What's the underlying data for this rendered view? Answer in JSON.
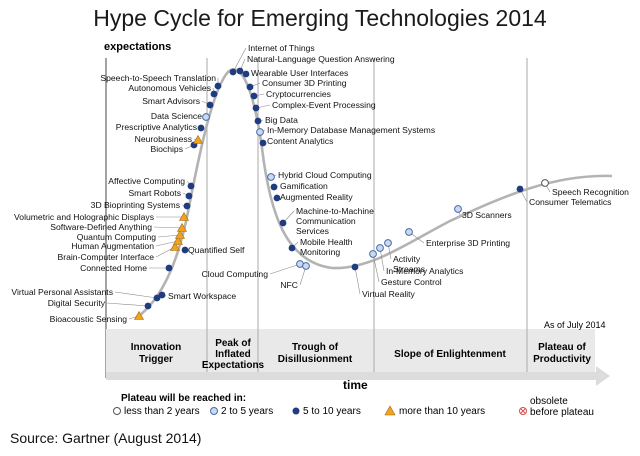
{
  "title": "Hype Cycle for Emerging Technologies 2014",
  "source": "Source: Gartner (August 2014)",
  "axes": {
    "y_label": "expectations",
    "x_label": "time"
  },
  "as_of": "As of July 2014",
  "phases": [
    {
      "lines": [
        "Innovation",
        "Trigger"
      ]
    },
    {
      "lines": [
        "Peak of",
        "Inflated",
        "Expectations"
      ]
    },
    {
      "lines": [
        "Trough of",
        "Disillusionment"
      ]
    },
    {
      "lines": [
        "Slope of Enlightenment"
      ]
    },
    {
      "lines": [
        "Plateau of",
        "Productivity"
      ]
    }
  ],
  "legend": {
    "title": "Plateau will be reached in:",
    "items": [
      {
        "marker": "open-circle",
        "label": "less than 2 years"
      },
      {
        "marker": "light-circle",
        "label": "2 to 5 years"
      },
      {
        "marker": "dark-circle",
        "label": "5 to 10 years"
      },
      {
        "marker": "triangle",
        "label": "more than 10 years"
      },
      {
        "marker": "crossed-circle",
        "label": "obsolete before plateau",
        "lines": [
          "obsolete",
          "before plateau"
        ]
      }
    ]
  },
  "colors": {
    "curve": "#b0b0b0",
    "dark_marker": "#1f3c80",
    "light_marker": "#c8daf0",
    "triangle": "#f2a21b",
    "obsolete": "#d8504e"
  },
  "technologies": [
    {
      "name": "Bioacoustic Sensing",
      "category": "triangle"
    },
    {
      "name": "Digital Security",
      "category": "dark"
    },
    {
      "name": "Virtual Personal Assistants",
      "category": "dark"
    },
    {
      "name": "Smart Workspace",
      "category": "dark"
    },
    {
      "name": "Connected Home",
      "category": "dark"
    },
    {
      "name": "Quantified Self",
      "category": "dark"
    },
    {
      "name": "Brain-Computer Interface",
      "category": "triangle"
    },
    {
      "name": "Human Augmentation",
      "category": "triangle"
    },
    {
      "name": "Quantum Computing",
      "category": "triangle"
    },
    {
      "name": "Software-Defined Anything",
      "category": "triangle"
    },
    {
      "name": "Volumetric and Holographic Displays",
      "category": "triangle"
    },
    {
      "name": "3D Bioprinting Systems",
      "category": "dark"
    },
    {
      "name": "Smart Robots",
      "category": "dark"
    },
    {
      "name": "Affective Computing",
      "category": "dark"
    },
    {
      "name": "Biochips",
      "category": "dark"
    },
    {
      "name": "Neurobusiness",
      "category": "triangle"
    },
    {
      "name": "Prescriptive Analytics",
      "category": "dark"
    },
    {
      "name": "Data Science",
      "category": "light"
    },
    {
      "name": "Smart Advisors",
      "category": "dark"
    },
    {
      "name": "Autonomous Vehicles",
      "category": "dark"
    },
    {
      "name": "Speech-to-Speech Translation",
      "category": "dark"
    },
    {
      "name": "Internet of Things",
      "category": "dark"
    },
    {
      "name": "Natural-Language Question Answering",
      "category": "dark"
    },
    {
      "name": "Wearable User Interfaces",
      "category": "dark"
    },
    {
      "name": "Consumer 3D Printing",
      "category": "dark"
    },
    {
      "name": "Cryptocurrencies",
      "category": "dark"
    },
    {
      "name": "Complex-Event Processing",
      "category": "dark"
    },
    {
      "name": "Big Data",
      "category": "dark"
    },
    {
      "name": "In-Memory Database Management Systems",
      "category": "light"
    },
    {
      "name": "Content Analytics",
      "category": "dark"
    },
    {
      "name": "Hybrid Cloud Computing",
      "category": "light"
    },
    {
      "name": "Gamification",
      "category": "dark"
    },
    {
      "name": "Augmented Reality",
      "category": "dark"
    },
    {
      "name": "Machine-to-Machine Communication Services",
      "category": "dark",
      "lines": [
        "Machine-to-Machine",
        "Communication",
        "Services"
      ]
    },
    {
      "name": "Mobile Health Monitoring",
      "category": "dark",
      "lines": [
        "Mobile Health",
        "Monitoring"
      ]
    },
    {
      "name": "Cloud Computing",
      "category": "light"
    },
    {
      "name": "NFC",
      "category": "light"
    },
    {
      "name": "Virtual Reality",
      "category": "dark"
    },
    {
      "name": "Gesture Control",
      "category": "light"
    },
    {
      "name": "In-Memory Analytics",
      "category": "light"
    },
    {
      "name": "Activity Streams",
      "category": "light",
      "lines": [
        "Activity",
        "Streams"
      ]
    },
    {
      "name": "Enterprise 3D Printing",
      "category": "light"
    },
    {
      "name": "3D Scanners",
      "category": "light"
    },
    {
      "name": "Consumer Telematics",
      "category": "dark"
    },
    {
      "name": "Speech Recognition",
      "category": "open"
    }
  ]
}
